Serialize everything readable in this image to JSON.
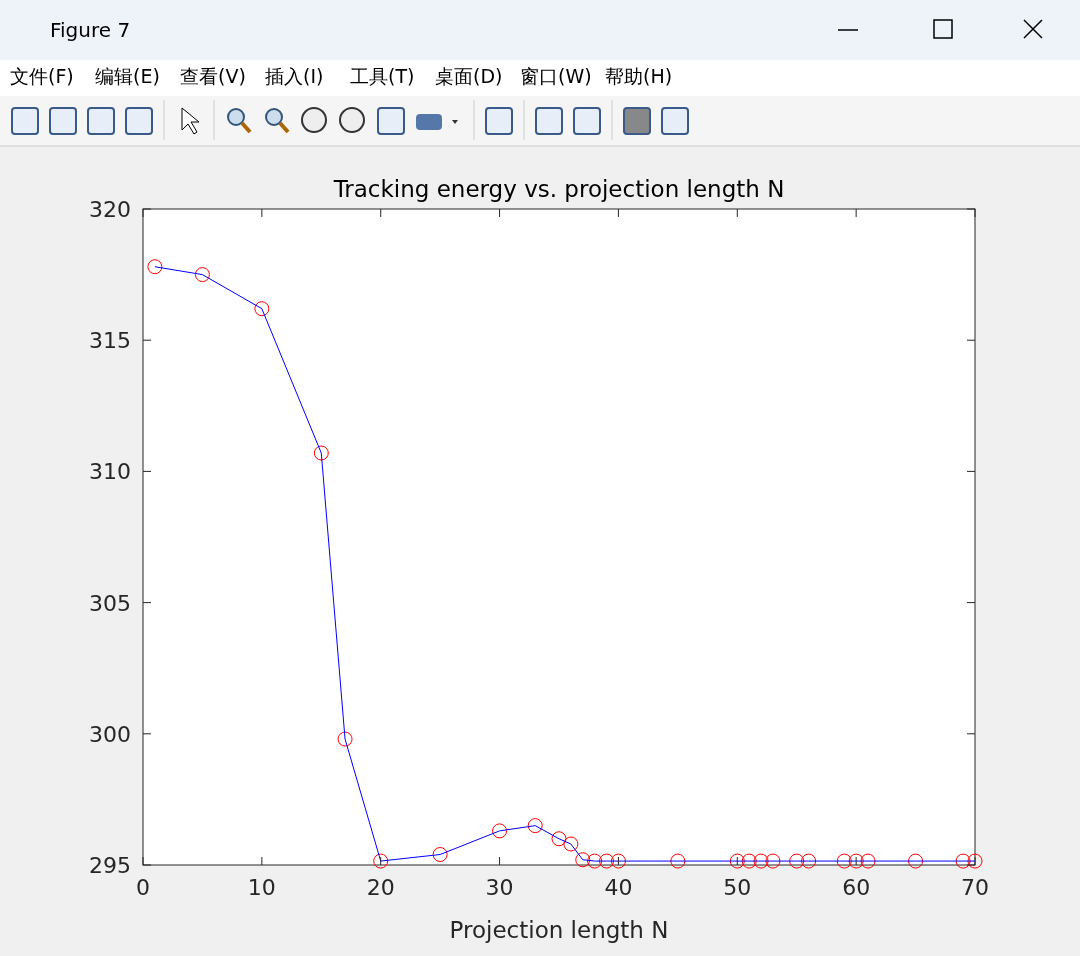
{
  "chart_data": {
    "type": "line",
    "title": "Tracking energy vs. projection length N",
    "xlabel": "Projection length N",
    "annotations": [
      "Figure 7",
      "文件(F)",
      "编辑(E)",
      "查看(V)",
      "插入(I)",
      "工具(T)",
      "桌面(D)",
      "窗口(W)",
      "帮助(H)"
    ],
    "x": [
      1,
      5,
      10,
      15,
      17,
      20,
      25,
      30,
      33,
      35,
      36,
      37,
      38,
      39,
      40,
      45,
      50,
      51,
      52,
      53,
      55,
      56,
      59,
      60,
      61,
      65,
      69,
      70
    ],
    "series": [
      {
        "color": "#0000ff",
        "marker": "circle",
        "colors": [
          "#ff0000",
          "#ff0000",
          "#ff0000",
          "#ff0000",
          "#ff0000",
          "#ff0000",
          "#ff0000",
          "#ff0000",
          "#ff0000",
          "#ff0000",
          "#ff0000",
          "#ff0000",
          "#ff0000",
          "#ff0000",
          "#ff0000",
          "#ff0000",
          "#ff0000",
          "#ff0000",
          "#ff0000",
          "#ff0000",
          "#ff0000",
          "#ff0000",
          "#ff0000",
          "#ff0000",
          "#ff0000",
          "#ff0000",
          "#ff0000",
          "#ff0000"
        ],
        "values": [
          317.8,
          317.5,
          316.2,
          310.7,
          299.8,
          295.15,
          295.4,
          296.3,
          296.5,
          296.0,
          295.8,
          295.2,
          295.15,
          295.15,
          295.15,
          295.15,
          295.15,
          295.15,
          295.15,
          295.15,
          295.15,
          295.15,
          295.15,
          295.15,
          295.15,
          295.15,
          295.15,
          295.15
        ]
      }
    ],
    "xlim": [
      0,
      70
    ],
    "xticks": [
      0,
      10,
      20,
      30,
      40,
      50,
      60,
      70
    ],
    "ylim": [
      295,
      320
    ],
    "yticks": [
      295,
      300,
      305,
      310,
      315,
      320
    ],
    "grid": false
  }
}
